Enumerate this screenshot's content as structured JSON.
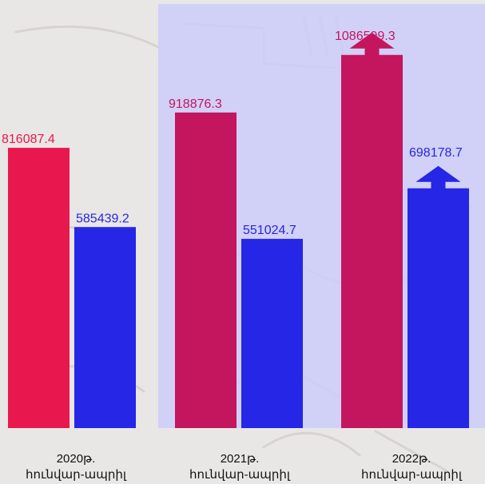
{
  "colors": {
    "series_a": "#e8184e",
    "series_a_alt": "#c4155f",
    "series_b": "#2626e6",
    "highlight_panel": "#cdcdf8"
  },
  "chart_data": {
    "type": "bar",
    "title": "",
    "xlabel": "",
    "ylabel": "",
    "ylim": [
      0,
      1200000
    ],
    "grid": false,
    "categories": [
      {
        "year": "2020թ.",
        "period": "հունվար-ապրիլ"
      },
      {
        "year": "2021թ.",
        "period": "հունվար-ապրիլ"
      },
      {
        "year": "2022թ.",
        "period": "հունվար-ապրիլ"
      }
    ],
    "series": [
      {
        "values": [
          816087.4,
          918876.3,
          1086599.3
        ],
        "labels": [
          "816087.4",
          "918876.3",
          "1086599.3"
        ],
        "colors": [
          "#e8184e",
          "#c4155f",
          "#c4155f"
        ]
      },
      {
        "values": [
          585439.2,
          551024.7,
          698178.7
        ],
        "labels": [
          "585439.2",
          "551024.7",
          "698178.7"
        ],
        "colors": [
          "#2626e6",
          "#2626e6",
          "#2626e6"
        ]
      }
    ],
    "up_arrows": [
      {
        "category": 2,
        "series": 0,
        "icon": "arrow-up-icon"
      },
      {
        "category": 2,
        "series": 1,
        "icon": "arrow-up-icon"
      }
    ]
  }
}
